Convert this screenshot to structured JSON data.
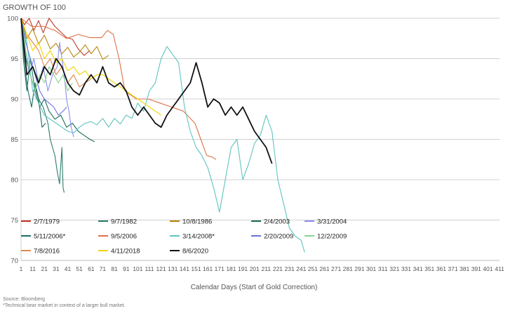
{
  "chart_data": {
    "type": "line",
    "title": "GROWTH OF 100",
    "xlabel": "Calendar Days (Start of Gold Correction)",
    "ylabel": "",
    "xlim": [
      1,
      411
    ],
    "ylim": [
      70,
      100
    ],
    "xticks": [
      1,
      11,
      21,
      31,
      41,
      51,
      61,
      71,
      81,
      91,
      101,
      111,
      121,
      131,
      141,
      151,
      161,
      171,
      181,
      191,
      201,
      211,
      221,
      231,
      241,
      251,
      261,
      271,
      281,
      291,
      301,
      311,
      321,
      331,
      341,
      351,
      361,
      371,
      381,
      391,
      401,
      411
    ],
    "yticks": [
      70,
      75,
      80,
      85,
      90,
      95,
      100
    ],
    "grid": "horizontal",
    "legend_position": "bottom-left inside plot",
    "series": [
      {
        "name": "2/7/1979",
        "color": "#c0392b",
        "x": [
          1,
          4,
          8,
          12,
          16,
          20,
          25,
          30,
          35,
          40,
          45,
          50,
          55,
          60
        ],
        "y": [
          100,
          99.2,
          100,
          98.5,
          99.7,
          98.2,
          100,
          99,
          98.3,
          97.6,
          97.4,
          96.2,
          95.4,
          96
        ]
      },
      {
        "name": "9/7/1982",
        "color": "#2e7d6a",
        "x": [
          1,
          3,
          6,
          9,
          12,
          16,
          20,
          24,
          26,
          28,
          30,
          32,
          34,
          36,
          37,
          38
        ],
        "y": [
          100,
          95,
          91,
          95,
          92,
          90,
          89,
          87,
          85,
          84,
          83,
          81,
          79.5,
          84,
          79,
          78.4
        ]
      },
      {
        "name": "10/8/1986",
        "color": "#b8860b",
        "x": [
          1,
          6,
          11,
          16,
          21,
          26,
          31,
          36,
          41,
          46,
          51,
          56,
          61,
          66,
          71,
          76
        ],
        "y": [
          100,
          97.5,
          98.7,
          96.8,
          97.9,
          96.2,
          96.9,
          95.6,
          96.4,
          95.2,
          95.8,
          96.7,
          95.6,
          96.5,
          94.9,
          95.4
        ]
      },
      {
        "name": "2/4/2003",
        "color": "#1a6e5a",
        "x": [
          1,
          5,
          9,
          13,
          17,
          21,
          25,
          30,
          35,
          40,
          45,
          50,
          55,
          60,
          64
        ],
        "y": [
          100,
          95,
          93,
          91,
          89,
          90,
          88.5,
          87.5,
          88,
          86.5,
          87,
          86,
          85.5,
          85,
          84.7
        ]
      },
      {
        "name": "3/31/2004",
        "color": "#8e8ef0",
        "x": [
          1,
          4,
          8,
          12,
          16,
          20,
          24,
          28,
          32,
          34,
          36,
          38,
          40,
          42,
          44,
          46
        ],
        "y": [
          100,
          97,
          93,
          95,
          92,
          94,
          91,
          93,
          94,
          97,
          95,
          93,
          90,
          88.5,
          86.5,
          85.3
        ]
      },
      {
        "name": "5/11/2006*",
        "color": "#1f6b63",
        "x": [
          1,
          4,
          7,
          10,
          13,
          16,
          19,
          22
        ],
        "y": [
          100,
          94,
          91,
          89,
          92,
          90,
          86.5,
          87
        ]
      },
      {
        "name": "9/5/2006",
        "color": "#e07045",
        "x": [
          1,
          10,
          20,
          30,
          40,
          50,
          60,
          70,
          75,
          80,
          85,
          90,
          100,
          110,
          120,
          130,
          140,
          150,
          155,
          160,
          165,
          168
        ],
        "y": [
          100,
          99,
          99,
          98.5,
          97.5,
          98,
          97.6,
          97.6,
          98.5,
          98,
          95,
          91,
          90,
          90,
          89.5,
          89,
          88.5,
          87,
          85,
          83,
          82.8,
          82.5
        ]
      },
      {
        "name": "3/14/2008*",
        "color": "#5fc4c0",
        "x": [
          1,
          6,
          11,
          16,
          21,
          26,
          31,
          36,
          41,
          46,
          51,
          56,
          61,
          66,
          71,
          76,
          81,
          86,
          91,
          96,
          101,
          106,
          111,
          116,
          121,
          126,
          131,
          136,
          141,
          146,
          151,
          156,
          161,
          166,
          171,
          176,
          181,
          186,
          191,
          196,
          201,
          206,
          211,
          216,
          221,
          226,
          231,
          236,
          241,
          244
        ],
        "y": [
          100,
          97,
          91,
          89.5,
          88,
          87.5,
          87,
          86.5,
          86,
          85.8,
          86.5,
          87,
          87.2,
          86.8,
          87.6,
          86.5,
          87.6,
          86.9,
          88,
          87.6,
          89.5,
          88.5,
          91,
          92,
          95,
          96.5,
          95.5,
          94.5,
          89,
          86,
          84,
          83,
          81.5,
          79,
          76,
          80,
          84,
          85,
          80,
          82,
          84.5,
          85.5,
          88,
          86,
          80,
          77,
          74,
          73,
          72.5,
          71
        ]
      },
      {
        "name": "2/20/2009",
        "color": "#6f6fe0",
        "x": [
          1,
          5,
          9,
          13,
          17,
          21,
          25,
          29,
          33,
          37,
          40
        ],
        "y": [
          100,
          97,
          95,
          93,
          91,
          90,
          89.5,
          89,
          88,
          88.5,
          89
        ]
      },
      {
        "name": "12/2/2009",
        "color": "#85d690",
        "x": [
          1,
          5,
          9,
          13,
          17,
          21,
          25,
          29,
          33,
          37,
          41,
          45
        ],
        "y": [
          100,
          96,
          93,
          91,
          93,
          92,
          94,
          93,
          92,
          93,
          91,
          92
        ]
      },
      {
        "name": "7/8/2016",
        "color": "#e0894a",
        "x": [
          1,
          6,
          11,
          16,
          21,
          26,
          31,
          36,
          41,
          46,
          51,
          56,
          61
        ],
        "y": [
          100,
          98,
          97,
          96,
          94,
          95,
          93,
          94,
          92,
          93,
          91.5,
          92,
          92.5
        ]
      },
      {
        "name": "4/11/2018",
        "color": "#f2d400",
        "x": [
          1,
          6,
          11,
          16,
          21,
          26,
          31,
          36,
          41,
          46,
          51,
          56,
          61,
          66,
          71,
          76,
          81,
          86,
          91,
          96,
          101,
          106,
          111,
          116,
          121
        ],
        "y": [
          100,
          98,
          96,
          97,
          95,
          96,
          94.5,
          95,
          93.5,
          94,
          93,
          93.5,
          92.5,
          93,
          93,
          92.5,
          92,
          91.5,
          91,
          90.5,
          90,
          89.5,
          89,
          88.5,
          88
        ]
      },
      {
        "name": "8/6/2020",
        "color": "#111111",
        "x": [
          1,
          6,
          11,
          16,
          21,
          26,
          31,
          36,
          41,
          46,
          51,
          56,
          61,
          66,
          71,
          76,
          81,
          86,
          91,
          96,
          101,
          106,
          111,
          116,
          121,
          126,
          131,
          136,
          141,
          146,
          151,
          156,
          161,
          166,
          171,
          176,
          181,
          186,
          191,
          196,
          201,
          206,
          211,
          216
        ],
        "y": [
          100,
          93,
          94,
          92,
          94,
          93,
          95,
          94,
          92,
          91,
          90.5,
          92,
          93,
          92,
          94,
          92,
          91.5,
          92,
          91,
          89,
          88,
          89,
          88,
          87,
          86.5,
          88,
          89,
          90,
          91,
          92,
          94.5,
          92,
          89,
          90,
          89.5,
          88,
          89,
          88,
          89,
          87.5,
          86,
          85,
          84,
          82
        ]
      }
    ]
  },
  "footnotes": {
    "source": "Source: Bloomberg",
    "note": "*Technical bear market in context of a larger bull market."
  }
}
